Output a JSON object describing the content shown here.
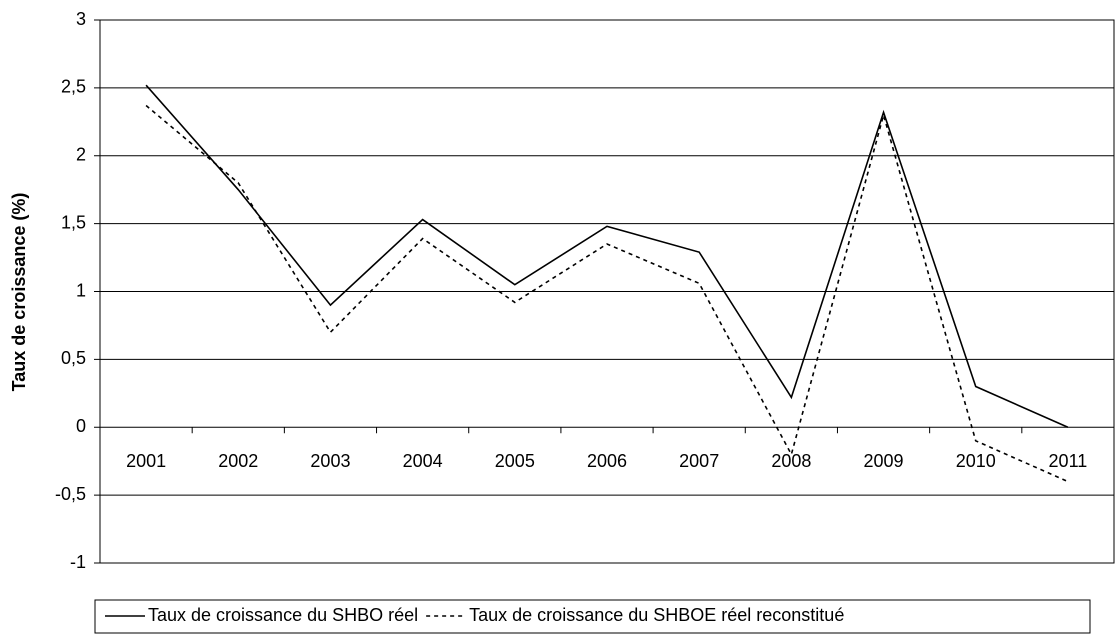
{
  "chart_data": {
    "type": "line",
    "y_label": "Taux de croissance (%)",
    "categories": [
      "2001",
      "2002",
      "2003",
      "2004",
      "2005",
      "2006",
      "2007",
      "2008",
      "2009",
      "2010",
      "2011"
    ],
    "series": [
      {
        "name": "Taux de croissance du SHBO réel",
        "color": "#000000",
        "dash": "solid",
        "values": [
          2.52,
          1.75,
          0.9,
          1.53,
          1.05,
          1.48,
          1.29,
          0.22,
          2.32,
          0.3,
          0.0
        ]
      },
      {
        "name": "Taux de croissance du SHBOE réel reconstitué",
        "color": "#000000",
        "dash": "dotted",
        "values": [
          2.37,
          1.8,
          0.7,
          1.39,
          0.92,
          1.35,
          1.06,
          -0.2,
          2.3,
          -0.1,
          -0.4
        ]
      }
    ],
    "ylim": [
      -1,
      3
    ],
    "yticks": [
      -1,
      {
        "value": -0.5,
        "label": "-0,5"
      },
      0,
      {
        "value": 0.5,
        "label": "0,5"
      },
      1,
      {
        "value": 1.5,
        "label": "1,5"
      },
      2,
      {
        "value": 2.5,
        "label": "2,5"
      },
      3
    ],
    "grid": true,
    "legend": "bottom"
  }
}
